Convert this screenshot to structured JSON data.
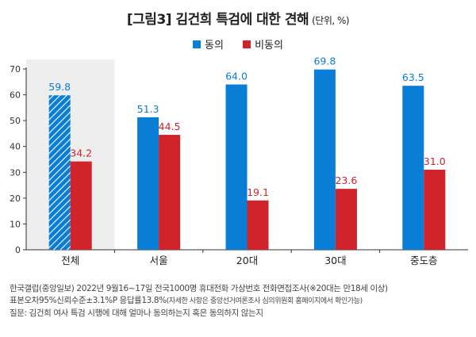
{
  "header": {
    "title": "[그림3] 김건희 특검에 대한 견해",
    "unit": "(단위, %)"
  },
  "chart_data": {
    "type": "bar",
    "categories": [
      "전체",
      "서울",
      "20대",
      "30대",
      "중도층"
    ],
    "series": [
      {
        "name": "동의",
        "values": [
          59.8,
          51.3,
          64.0,
          69.8,
          63.5
        ],
        "labels": [
          "59.8",
          "51.3",
          "64.0",
          "69.8",
          "63.5"
        ],
        "color": "#0a7dd6"
      },
      {
        "name": "비동의",
        "values": [
          34.2,
          44.5,
          19.1,
          23.6,
          31.0
        ],
        "labels": [
          "34.2",
          "44.5",
          "19.1",
          "23.6",
          "31.0"
        ],
        "color": "#d1232a"
      }
    ],
    "ylim": [
      0,
      70
    ],
    "yticks": [
      0,
      10,
      20,
      30,
      40,
      50,
      60,
      70
    ],
    "highlight_category": "전체",
    "highlight_background": "#eeeeee",
    "grid": false,
    "legend_position": "top-center"
  },
  "notes": {
    "line1": "한국갤럽(중앙일보) 2022년 9월16~17일 전국1000명 휴대전화 가상번호 전화면접조사(※20대는 만18세 이상)",
    "line2_main": "표본오차95%신뢰수준±3.1%P 응답률13.8%",
    "line2_small": "(자세한 사항은 중앙선거여론조사 심의위원회 홈페이지에서 확인가능)",
    "line3": "질문: 김건희 여사 특검 시행에 대해 얼마나 동의하는지 혹은 동의하지 않는지"
  }
}
